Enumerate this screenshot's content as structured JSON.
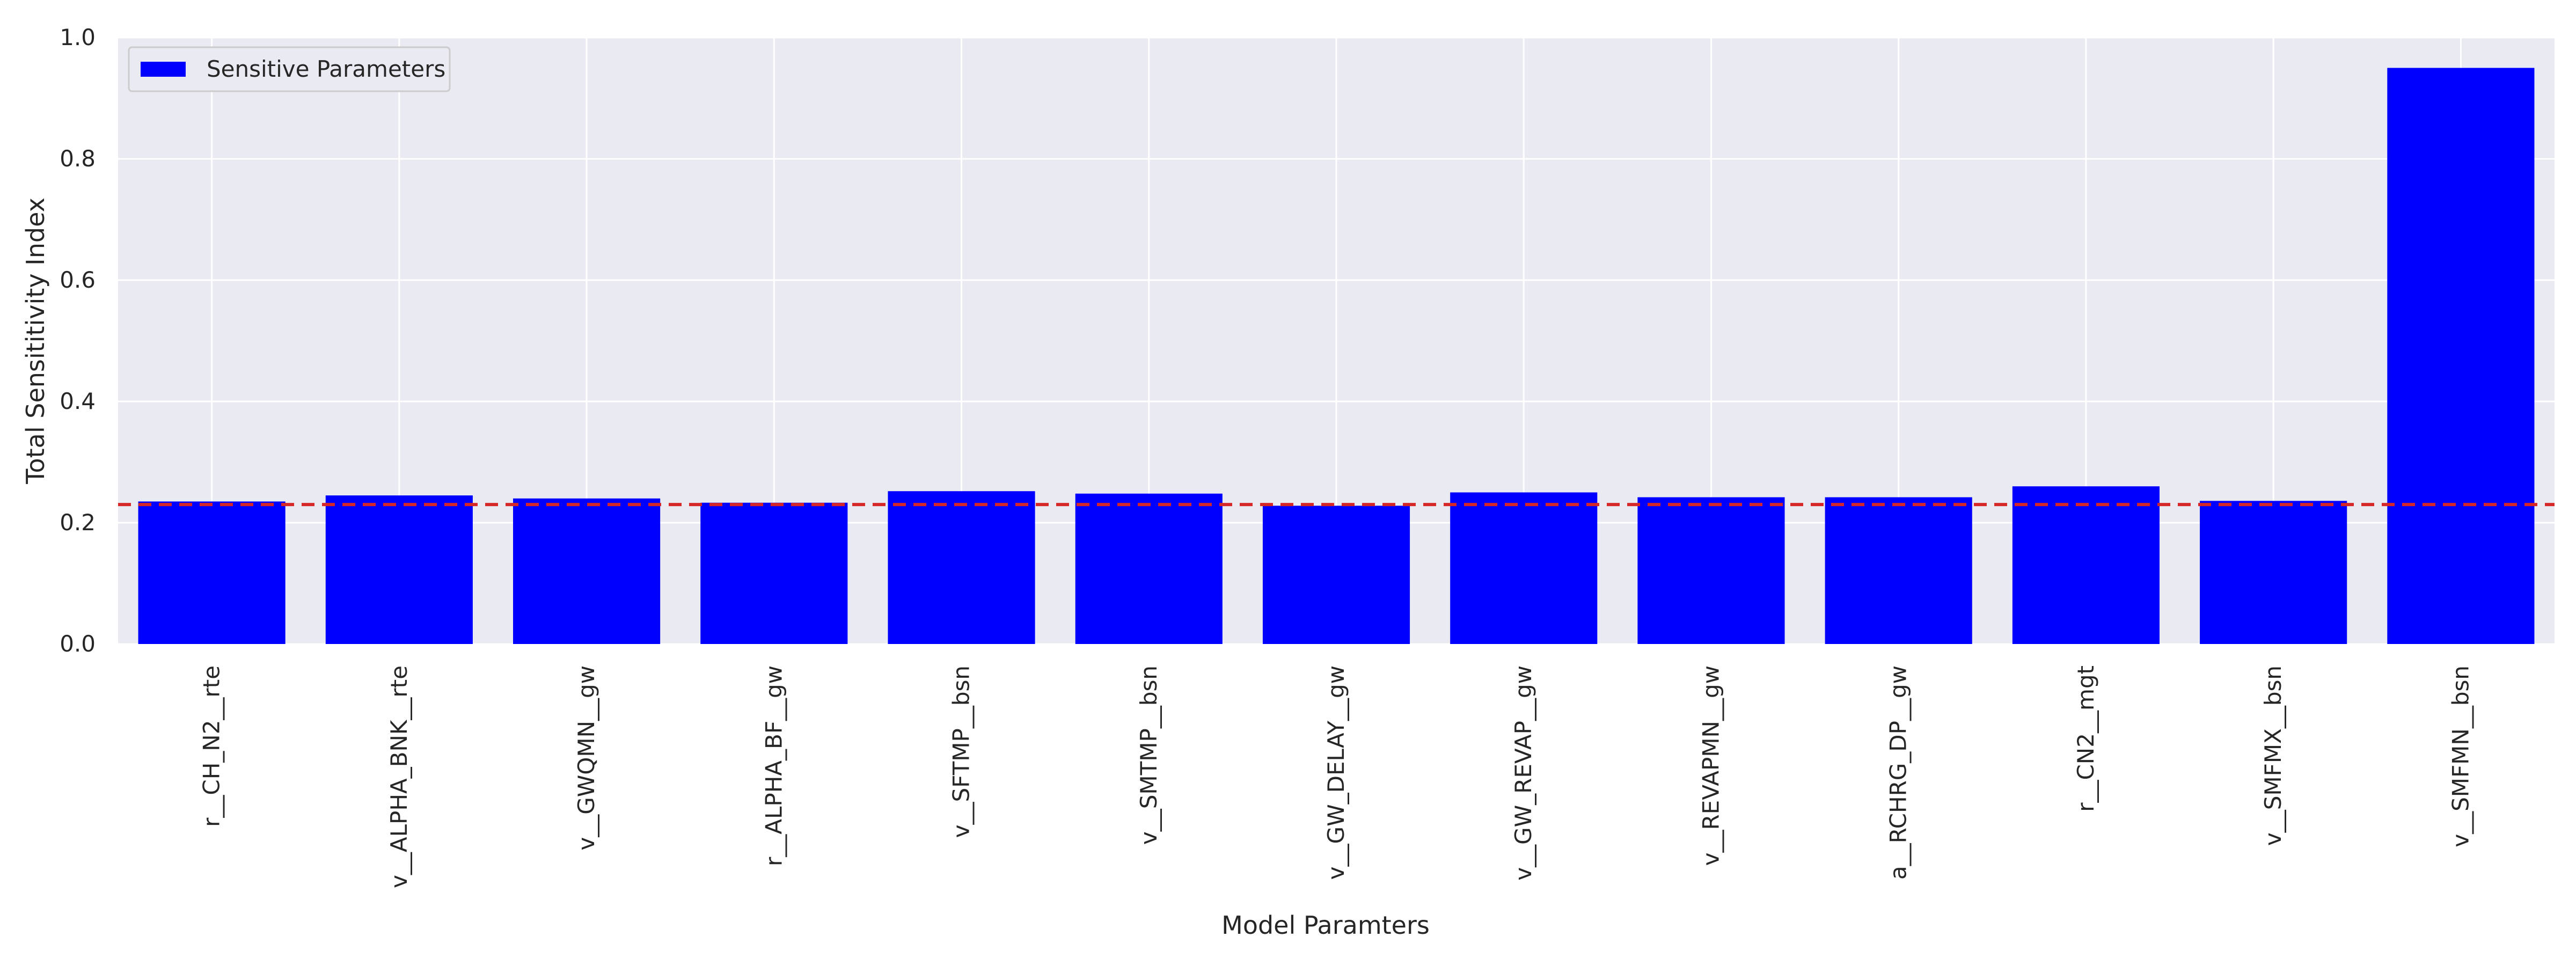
{
  "chart_data": {
    "type": "bar",
    "title": "",
    "xlabel": "Model Paramters",
    "ylabel": "Total Sensititivity Index",
    "ylim": [
      0,
      1.0
    ],
    "yticks": [
      0.0,
      0.2,
      0.4,
      0.6,
      0.8,
      1.0
    ],
    "ytick_labels": [
      "0.0",
      "0.2",
      "0.4",
      "0.6",
      "0.8",
      "1.0"
    ],
    "categories": [
      "r__CH_N2__rte",
      "v__ALPHA_BNK__rte",
      "v__GWQMN__gw",
      "r__ALPHA_BF__gw",
      "v__SFTMP__bsn",
      "v__SMTMP__bsn",
      "v__GW_DELAY__gw",
      "v__GW_REVAP__gw",
      "v__REVAPMN__gw",
      "a__RCHRG_DP__gw",
      "r__CN2__mgt",
      "v__SMFMX__bsn",
      "v__SMFMN__bsn"
    ],
    "series": [
      {
        "name": "Sensitive Parameters",
        "color": "#0000ff",
        "values": [
          0.235,
          0.245,
          0.24,
          0.233,
          0.252,
          0.248,
          0.228,
          0.25,
          0.242,
          0.242,
          0.26,
          0.236,
          0.95
        ]
      }
    ],
    "threshold": {
      "value": 0.23,
      "color": "#d62728",
      "style": "dashed"
    },
    "grid": true,
    "background": "#eaeaf2",
    "legend_position": "top-left"
  }
}
